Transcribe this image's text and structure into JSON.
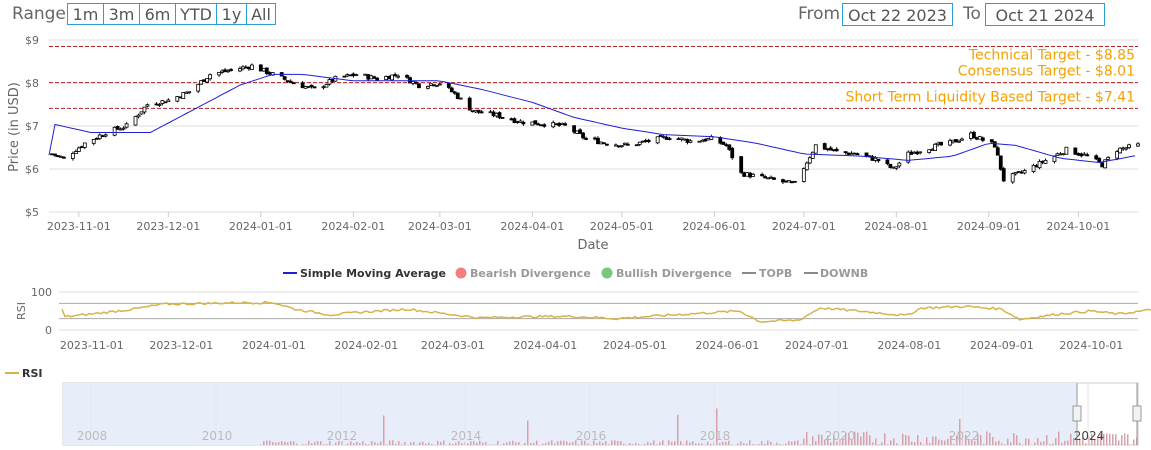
{
  "range": {
    "label": "Range",
    "buttons": [
      "1m",
      "3m",
      "6m",
      "YTD",
      "1y",
      "All"
    ],
    "from_label": "From",
    "from_value": "Oct 22 2023",
    "to_label": "To",
    "to_value": "Oct 21 2024"
  },
  "colors": {
    "accent": "#2a9fd6",
    "target_line": "#b22222",
    "target_text": "#f2a100",
    "sma": "#1f1fd6",
    "rsi": "#d4b44a",
    "bearish": "#f08080",
    "bullish": "#77c77c",
    "navigator_fill": "#e8eef9",
    "volume": "#d9a0aa"
  },
  "chart_data": [
    {
      "type": "candlestick",
      "ylabel": "Price (in USD)",
      "xlabel": "Date",
      "y_ticks": [
        "$5",
        "$6",
        "$7",
        "$8",
        "$9"
      ],
      "ylim": [
        5,
        9
      ],
      "x_ticks": [
        "2023-11-01",
        "2023-12-01",
        "2024-01-01",
        "2024-02-01",
        "2024-03-01",
        "2024-04-01",
        "2024-05-01",
        "2024-06-01",
        "2024-07-01",
        "2024-08-01",
        "2024-09-01",
        "2024-10-01"
      ],
      "x_range": [
        "2023-10-22",
        "2024-10-21"
      ],
      "targets": [
        {
          "label": "Technical Target - $8.85",
          "value": 8.85
        },
        {
          "label": "Consensus Target - $8.01",
          "value": 8.01
        },
        {
          "label": "Short Term Liquidity Based Target - $7.41",
          "value": 7.41
        }
      ],
      "price_anchors": [
        [
          "2023-10-23",
          6.35
        ],
        [
          "2023-10-27",
          6.25
        ],
        [
          "2023-11-03",
          6.6
        ],
        [
          "2023-11-10",
          6.85
        ],
        [
          "2023-11-17",
          7.0
        ],
        [
          "2023-11-24",
          7.5
        ],
        [
          "2023-12-01",
          7.6
        ],
        [
          "2023-12-08",
          7.8
        ],
        [
          "2023-12-15",
          8.2
        ],
        [
          "2023-12-22",
          8.3
        ],
        [
          "2023-12-29",
          8.4
        ],
        [
          "2024-01-05",
          8.2
        ],
        [
          "2024-01-12",
          8.0
        ],
        [
          "2024-01-19",
          7.85
        ],
        [
          "2024-01-26",
          8.1
        ],
        [
          "2024-02-02",
          8.2
        ],
        [
          "2024-02-09",
          8.1
        ],
        [
          "2024-02-16",
          8.2
        ],
        [
          "2024-02-23",
          7.95
        ],
        [
          "2024-03-01",
          8.0
        ],
        [
          "2024-03-06",
          7.75
        ],
        [
          "2024-03-12",
          7.35
        ],
        [
          "2024-03-20",
          7.25
        ],
        [
          "2024-03-28",
          7.1
        ],
        [
          "2024-04-05",
          7.05
        ],
        [
          "2024-04-12",
          7.0
        ],
        [
          "2024-04-19",
          6.7
        ],
        [
          "2024-04-26",
          6.6
        ],
        [
          "2024-05-03",
          6.55
        ],
        [
          "2024-05-10",
          6.65
        ],
        [
          "2024-05-17",
          6.75
        ],
        [
          "2024-05-24",
          6.65
        ],
        [
          "2024-05-31",
          6.7
        ],
        [
          "2024-06-05",
          6.55
        ],
        [
          "2024-06-10",
          5.9
        ],
        [
          "2024-06-17",
          5.8
        ],
        [
          "2024-06-24",
          5.7
        ],
        [
          "2024-06-28",
          5.65
        ],
        [
          "2024-07-05",
          6.55
        ],
        [
          "2024-07-12",
          6.4
        ],
        [
          "2024-07-19",
          6.35
        ],
        [
          "2024-07-26",
          6.2
        ],
        [
          "2024-07-31",
          6.0
        ],
        [
          "2024-08-05",
          6.35
        ],
        [
          "2024-08-12",
          6.5
        ],
        [
          "2024-08-19",
          6.6
        ],
        [
          "2024-08-26",
          6.8
        ],
        [
          "2024-09-03",
          6.55
        ],
        [
          "2024-09-06",
          5.75
        ],
        [
          "2024-09-13",
          5.95
        ],
        [
          "2024-09-20",
          6.2
        ],
        [
          "2024-09-27",
          6.45
        ],
        [
          "2024-10-04",
          6.3
        ],
        [
          "2024-10-09",
          6.1
        ],
        [
          "2024-10-14",
          6.45
        ],
        [
          "2024-10-21",
          6.55
        ]
      ],
      "sma_anchors": [
        [
          "2023-10-23",
          7.05
        ],
        [
          "2023-11-05",
          6.85
        ],
        [
          "2023-11-25",
          6.85
        ],
        [
          "2023-12-10",
          7.4
        ],
        [
          "2023-12-25",
          7.95
        ],
        [
          "2024-01-05",
          8.2
        ],
        [
          "2024-01-15",
          8.2
        ],
        [
          "2024-02-01",
          8.05
        ],
        [
          "2024-03-01",
          8.05
        ],
        [
          "2024-03-15",
          7.85
        ],
        [
          "2024-04-01",
          7.55
        ],
        [
          "2024-04-15",
          7.2
        ],
        [
          "2024-05-01",
          6.95
        ],
        [
          "2024-05-15",
          6.8
        ],
        [
          "2024-06-01",
          6.75
        ],
        [
          "2024-06-15",
          6.6
        ],
        [
          "2024-07-01",
          6.35
        ],
        [
          "2024-07-20",
          6.3
        ],
        [
          "2024-08-05",
          6.2
        ],
        [
          "2024-08-20",
          6.3
        ],
        [
          "2024-09-01",
          6.6
        ],
        [
          "2024-09-10",
          6.55
        ],
        [
          "2024-09-25",
          6.25
        ],
        [
          "2024-10-08",
          6.15
        ],
        [
          "2024-10-21",
          6.32
        ]
      ]
    },
    {
      "type": "line",
      "ylabel": "RSI",
      "ylim": [
        0,
        100
      ],
      "y_ticks": [
        "0",
        "100"
      ],
      "x_ticks": [
        "2023-11-01",
        "2023-12-01",
        "2024-01-01",
        "2024-02-01",
        "2024-03-01",
        "2024-04-01",
        "2024-05-01",
        "2024-06-01",
        "2024-07-01",
        "2024-08-01",
        "2024-09-01",
        "2024-10-01"
      ],
      "series": [
        {
          "name": "RSI",
          "anchors": [
            [
              "2023-10-23",
              35
            ],
            [
              "2023-11-01",
              42
            ],
            [
              "2023-11-15",
              55
            ],
            [
              "2023-11-25",
              68
            ],
            [
              "2023-12-10",
              70
            ],
            [
              "2023-12-20",
              72
            ],
            [
              "2024-01-01",
              72
            ],
            [
              "2024-01-08",
              55
            ],
            [
              "2024-01-20",
              40
            ],
            [
              "2024-02-01",
              48
            ],
            [
              "2024-02-15",
              55
            ],
            [
              "2024-02-25",
              45
            ],
            [
              "2024-03-10",
              32
            ],
            [
              "2024-03-25",
              35
            ],
            [
              "2024-04-10",
              36
            ],
            [
              "2024-04-25",
              30
            ],
            [
              "2024-05-10",
              38
            ],
            [
              "2024-05-25",
              45
            ],
            [
              "2024-06-05",
              50
            ],
            [
              "2024-06-12",
              22
            ],
            [
              "2024-06-25",
              26
            ],
            [
              "2024-07-02",
              58
            ],
            [
              "2024-07-15",
              50
            ],
            [
              "2024-07-31",
              38
            ],
            [
              "2024-08-05",
              58
            ],
            [
              "2024-08-20",
              62
            ],
            [
              "2024-09-01",
              55
            ],
            [
              "2024-09-07",
              28
            ],
            [
              "2024-09-20",
              42
            ],
            [
              "2024-10-01",
              50
            ],
            [
              "2024-10-10",
              42
            ],
            [
              "2024-10-21",
              53
            ]
          ]
        }
      ],
      "bands": [
        {
          "name": "TOPB",
          "value": 70
        },
        {
          "name": "DOWNB",
          "value": 30
        }
      ]
    }
  ],
  "legend": [
    "Simple Moving Average",
    "Bearish Divergence",
    "Bullish Divergence",
    "TOPB",
    "DOWNB"
  ],
  "rsi_legend": "RSI",
  "navigator": {
    "years": [
      "2008",
      "2010",
      "2012",
      "2014",
      "2016",
      "2018",
      "2020",
      "2022",
      "2024"
    ]
  }
}
